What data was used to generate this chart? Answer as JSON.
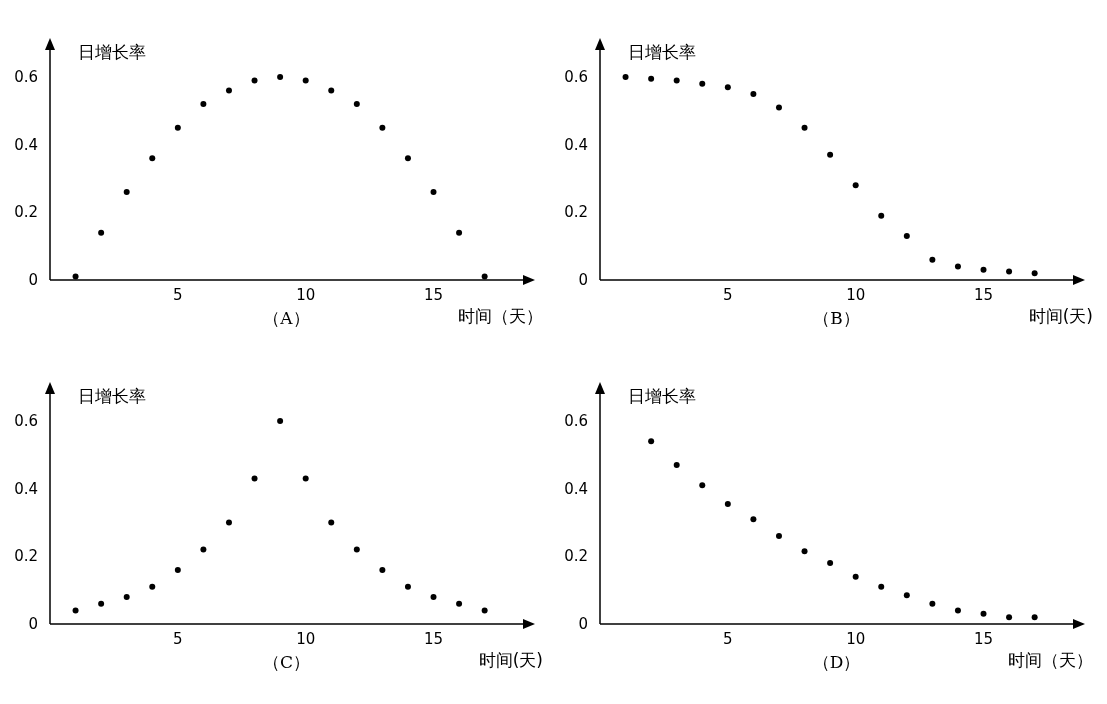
{
  "chart_data": [
    {
      "type": "scatter",
      "ylabel": "日增长率",
      "xlabel": "时间（天）",
      "annotations": [
        "（A）"
      ],
      "x": [
        1,
        2,
        3,
        4,
        5,
        6,
        7,
        8,
        9,
        10,
        11,
        12,
        13,
        14,
        15,
        16,
        17
      ],
      "values": [
        0.01,
        0.14,
        0.26,
        0.36,
        0.45,
        0.52,
        0.56,
        0.59,
        0.6,
        0.59,
        0.56,
        0.52,
        0.45,
        0.36,
        0.26,
        0.14,
        0.01
      ],
      "color": "#000000",
      "marker": "circle",
      "xlim": [
        0,
        18.5
      ],
      "ylim": [
        0,
        0.68
      ],
      "xticks": [
        5,
        10,
        15
      ],
      "yticks": [
        0,
        0.2,
        0.4,
        0.6
      ],
      "grid": false
    },
    {
      "type": "scatter",
      "ylabel": "日增长率",
      "xlabel": "时间(天)",
      "annotations": [
        "（B）"
      ],
      "x": [
        1,
        2,
        3,
        4,
        5,
        6,
        7,
        8,
        9,
        10,
        11,
        12,
        13,
        14,
        15,
        16,
        17
      ],
      "values": [
        0.6,
        0.595,
        0.59,
        0.58,
        0.57,
        0.55,
        0.51,
        0.45,
        0.37,
        0.28,
        0.19,
        0.13,
        0.06,
        0.04,
        0.03,
        0.025,
        0.02
      ],
      "color": "#000000",
      "marker": "circle",
      "xlim": [
        0,
        18.5
      ],
      "ylim": [
        0,
        0.68
      ],
      "xticks": [
        5,
        10,
        15
      ],
      "yticks": [
        0,
        0.2,
        0.4,
        0.6
      ],
      "grid": false
    },
    {
      "type": "scatter",
      "ylabel": "日增长率",
      "xlabel": "时间(天)",
      "annotations": [
        "（C）"
      ],
      "x": [
        1,
        2,
        3,
        4,
        5,
        6,
        7,
        8,
        9,
        10,
        11,
        12,
        13,
        14,
        15,
        16,
        17
      ],
      "values": [
        0.04,
        0.06,
        0.08,
        0.11,
        0.16,
        0.22,
        0.3,
        0.43,
        0.6,
        0.43,
        0.3,
        0.22,
        0.16,
        0.11,
        0.08,
        0.06,
        0.04
      ],
      "color": "#000000",
      "marker": "circle",
      "xlim": [
        0,
        18.5
      ],
      "ylim": [
        0,
        0.68
      ],
      "xticks": [
        5,
        10,
        15
      ],
      "yticks": [
        0,
        0.2,
        0.4,
        0.6
      ],
      "grid": false
    },
    {
      "type": "scatter",
      "ylabel": "日增长率",
      "xlabel": "时间（天）",
      "annotations": [
        "（D）"
      ],
      "x": [
        2,
        3,
        4,
        5,
        6,
        7,
        8,
        9,
        10,
        11,
        12,
        13,
        14,
        15,
        16,
        17
      ],
      "values": [
        0.54,
        0.47,
        0.41,
        0.355,
        0.31,
        0.26,
        0.215,
        0.18,
        0.14,
        0.11,
        0.085,
        0.06,
        0.04,
        0.03,
        0.02,
        0.02
      ],
      "color": "#000000",
      "marker": "circle",
      "xlim": [
        0,
        18.5
      ],
      "ylim": [
        0,
        0.68
      ],
      "xticks": [
        5,
        10,
        15
      ],
      "yticks": [
        0,
        0.2,
        0.4,
        0.6
      ],
      "grid": false
    }
  ]
}
